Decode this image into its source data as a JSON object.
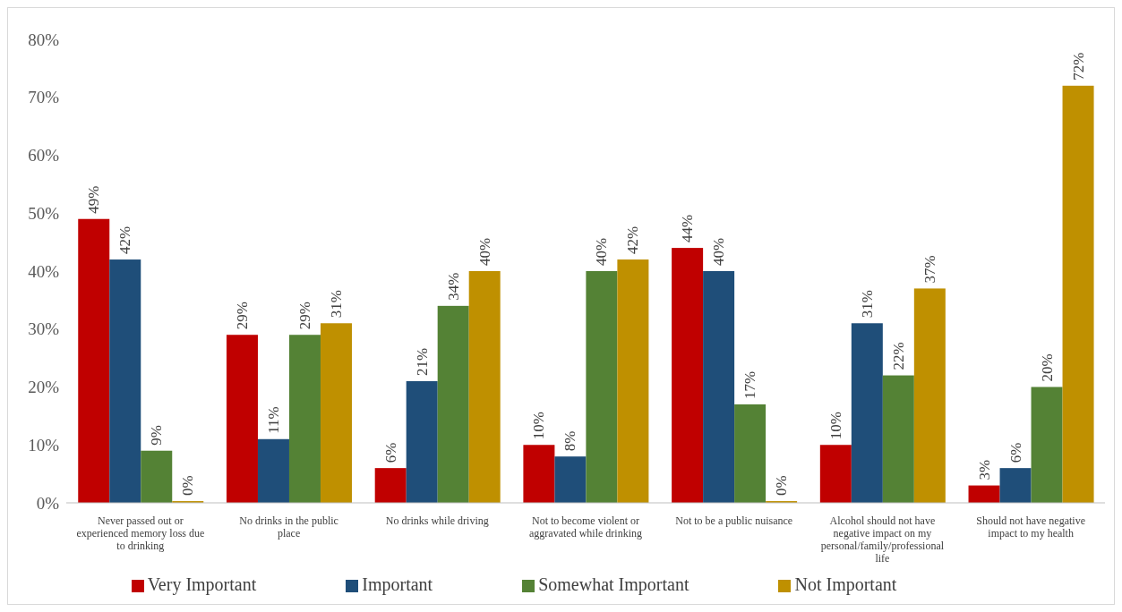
{
  "chart_data": {
    "type": "bar",
    "categories": [
      "Never passed out or experienced memory loss due to drinking",
      "No drinks in the public place",
      "No drinks while driving",
      "Not to become violent or aggravated while drinking",
      "Not to be a public nuisance",
      "Alcohol should not have negative impact on my personal/family/professional life",
      "Should not have negative impact to my health"
    ],
    "series": [
      {
        "name": "Very Important",
        "color": "#c00000",
        "values": [
          49,
          29,
          6,
          10,
          44,
          10,
          3
        ],
        "value_labels": [
          "49%",
          "29%",
          "6%",
          "10%",
          "44%",
          "10%",
          "3%"
        ]
      },
      {
        "name": "Important",
        "color": "#1f4e79",
        "values": [
          42,
          11,
          21,
          8,
          40,
          31,
          6
        ],
        "value_labels": [
          "42%",
          "11%",
          "21%",
          "8%",
          "40%",
          "31%",
          "6%"
        ]
      },
      {
        "name": "Somewhat Important",
        "color": "#548235",
        "values": [
          9,
          29,
          34,
          40,
          17,
          22,
          20
        ],
        "value_labels": [
          "9%",
          "29%",
          "34%",
          "40%",
          "17%",
          "22%",
          "20%"
        ]
      },
      {
        "name": "Not Important",
        "color": "#bf9000",
        "values": [
          0.3,
          31,
          40,
          42,
          0.3,
          37,
          72
        ],
        "value_labels": [
          "0%",
          "31%",
          "40%",
          "42%",
          "0%",
          "37%",
          "72%"
        ]
      }
    ],
    "ylim": [
      0,
      80
    ],
    "yticks": [
      {
        "value": 0,
        "label": "0%"
      },
      {
        "value": 10,
        "label": "10%"
      },
      {
        "value": 20,
        "label": "20%"
      },
      {
        "value": 30,
        "label": "30%"
      },
      {
        "value": 40,
        "label": "40%"
      },
      {
        "value": 50,
        "label": "50%"
      },
      {
        "value": 60,
        "label": "60%"
      },
      {
        "value": 70,
        "label": "70%"
      },
      {
        "value": 80,
        "label": "80%"
      }
    ],
    "grid": false,
    "legend": "bottom"
  }
}
